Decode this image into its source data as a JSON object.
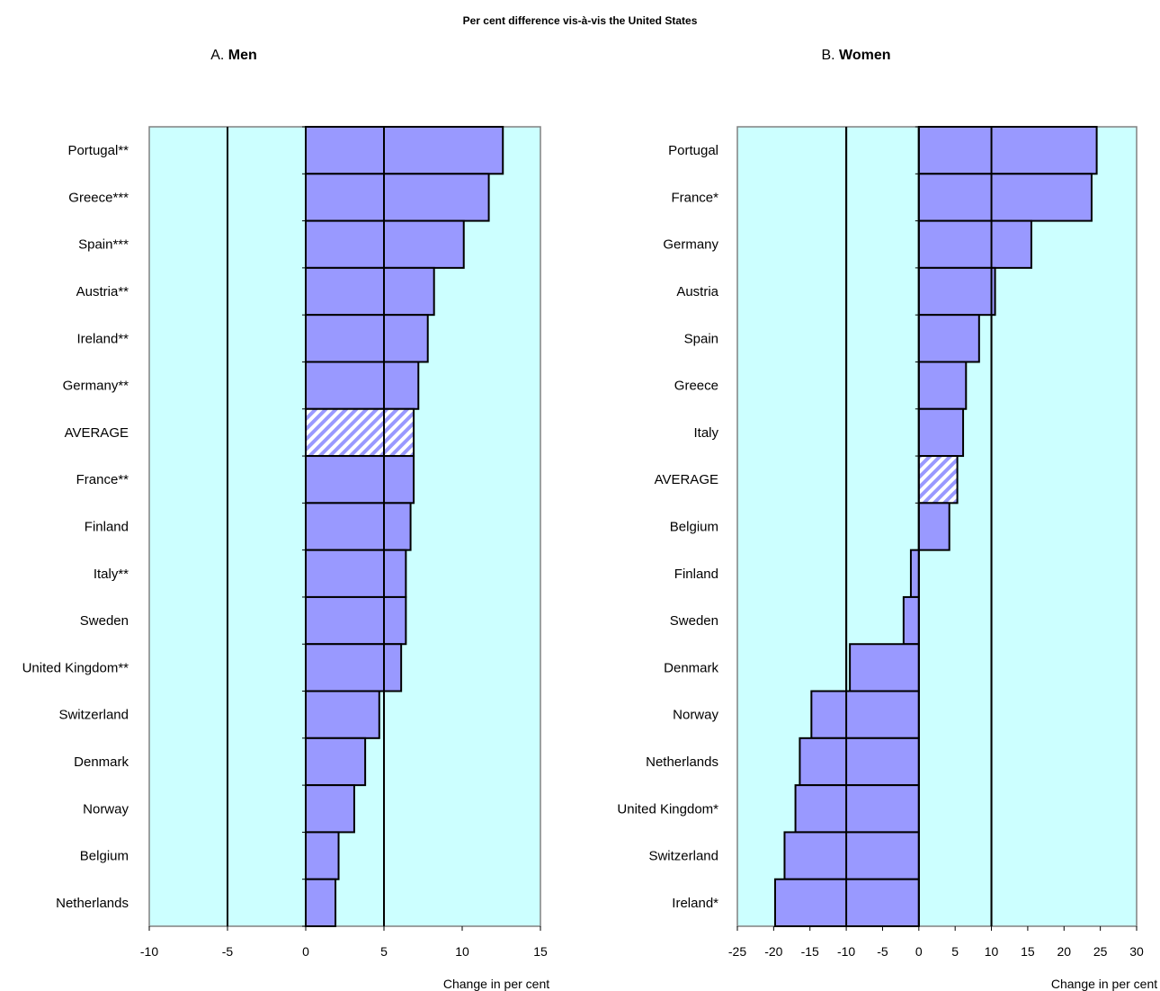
{
  "title": "Per cent difference vis-à-vis the United States",
  "colors": {
    "plot_background": "#ccffff",
    "bar_fill": "#9999ff",
    "bar_stroke": "#000000"
  },
  "chart_data": [
    {
      "type": "bar",
      "orientation": "horizontal",
      "panel_prefix": "A.",
      "panel_name": "Men",
      "xlabel": "Change in per cent",
      "xlim": [
        -10,
        15
      ],
      "xticks": [
        -10,
        -5,
        0,
        5,
        10,
        15
      ],
      "reference_lines": [
        -5,
        0,
        5
      ],
      "grid": false,
      "highlight_category": "AVERAGE",
      "categories": [
        "Portugal**",
        "Greece***",
        "Spain***",
        "Austria**",
        "Ireland**",
        "Germany**",
        "AVERAGE",
        "France**",
        "Finland",
        "Italy**",
        "Sweden",
        "United Kingdom**",
        "Switzerland",
        "Denmark",
        "Norway",
        "Belgium",
        "Netherlands"
      ],
      "values": [
        12.6,
        11.7,
        10.1,
        8.2,
        7.8,
        7.2,
        6.9,
        6.9,
        6.7,
        6.4,
        6.4,
        6.1,
        4.7,
        3.8,
        3.1,
        2.1,
        1.9
      ]
    },
    {
      "type": "bar",
      "orientation": "horizontal",
      "panel_prefix": "B.",
      "panel_name": "Women",
      "xlabel": "Change in per cent",
      "xlim": [
        -25,
        30
      ],
      "xticks": [
        -25,
        -20,
        -15,
        -10,
        -5,
        0,
        5,
        10,
        15,
        20,
        25,
        30
      ],
      "reference_lines": [
        -10,
        0,
        10
      ],
      "grid": false,
      "highlight_category": "AVERAGE",
      "categories": [
        "Portugal",
        "France*",
        "Germany",
        "Austria",
        "Spain",
        "Greece",
        "Italy",
        "AVERAGE",
        "Belgium",
        "Finland",
        "Sweden",
        "Denmark",
        "Norway",
        "Netherlands",
        "United Kingdom*",
        "Switzerland",
        "Ireland*"
      ],
      "values": [
        24.5,
        23.8,
        15.5,
        10.5,
        8.3,
        6.5,
        6.1,
        5.3,
        4.2,
        -1.1,
        -2.1,
        -9.5,
        -14.8,
        -16.4,
        -17.0,
        -18.5,
        -19.8
      ]
    }
  ]
}
